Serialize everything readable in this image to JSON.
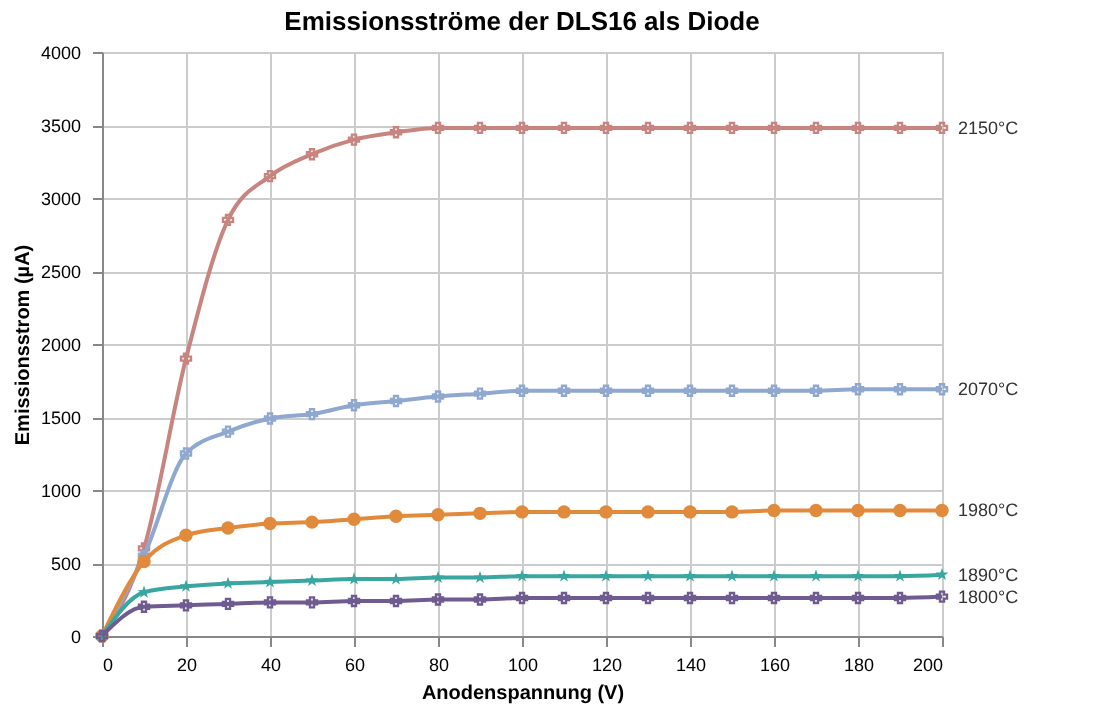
{
  "chart_data": {
    "type": "line",
    "title": "Emissionsströme der DLS16 als Diode",
    "xlabel": "Anodenspannung (V)",
    "ylabel": "Emissionsstrom (µA)",
    "x": [
      0,
      10,
      20,
      30,
      40,
      50,
      60,
      70,
      80,
      90,
      100,
      110,
      120,
      130,
      140,
      150,
      160,
      170,
      180,
      190,
      200
    ],
    "series": [
      {
        "name": "2150°C",
        "color": "#c8847f",
        "marker": "cross",
        "values": [
          0,
          600,
          1900,
          2850,
          3150,
          3300,
          3400,
          3450,
          3480,
          3480,
          3480,
          3480,
          3480,
          3480,
          3480,
          3480,
          3480,
          3480,
          3480,
          3480,
          3480
        ]
      },
      {
        "name": "2070°C",
        "color": "#8fa8d0",
        "marker": "cross",
        "values": [
          0,
          550,
          1250,
          1400,
          1490,
          1520,
          1580,
          1610,
          1640,
          1660,
          1680,
          1680,
          1680,
          1680,
          1680,
          1680,
          1680,
          1680,
          1690,
          1690,
          1690
        ]
      },
      {
        "name": "1980°C",
        "color": "#e28a3c",
        "marker": "circle",
        "values": [
          0,
          510,
          690,
          740,
          770,
          780,
          800,
          820,
          830,
          840,
          850,
          850,
          850,
          850,
          850,
          850,
          860,
          860,
          860,
          860,
          860
        ]
      },
      {
        "name": "1890°C",
        "color": "#3aa6a0",
        "marker": "star",
        "values": [
          0,
          300,
          340,
          360,
          370,
          380,
          390,
          390,
          400,
          400,
          410,
          410,
          410,
          410,
          410,
          410,
          410,
          410,
          410,
          410,
          420
        ]
      },
      {
        "name": "1800°C",
        "color": "#6f5b8f",
        "marker": "cross",
        "values": [
          0,
          200,
          210,
          220,
          230,
          230,
          240,
          240,
          250,
          250,
          260,
          260,
          260,
          260,
          260,
          260,
          260,
          260,
          260,
          260,
          270
        ]
      }
    ],
    "xlim": [
      0,
      200
    ],
    "xticks": [
      0,
      20,
      40,
      60,
      80,
      100,
      120,
      140,
      160,
      180,
      200
    ],
    "ylim": [
      0,
      4000
    ],
    "yticks": [
      0,
      500,
      1000,
      1500,
      2000,
      2500,
      3000,
      3500,
      4000
    ],
    "grid": true,
    "legend": false,
    "line_style": "solid"
  }
}
